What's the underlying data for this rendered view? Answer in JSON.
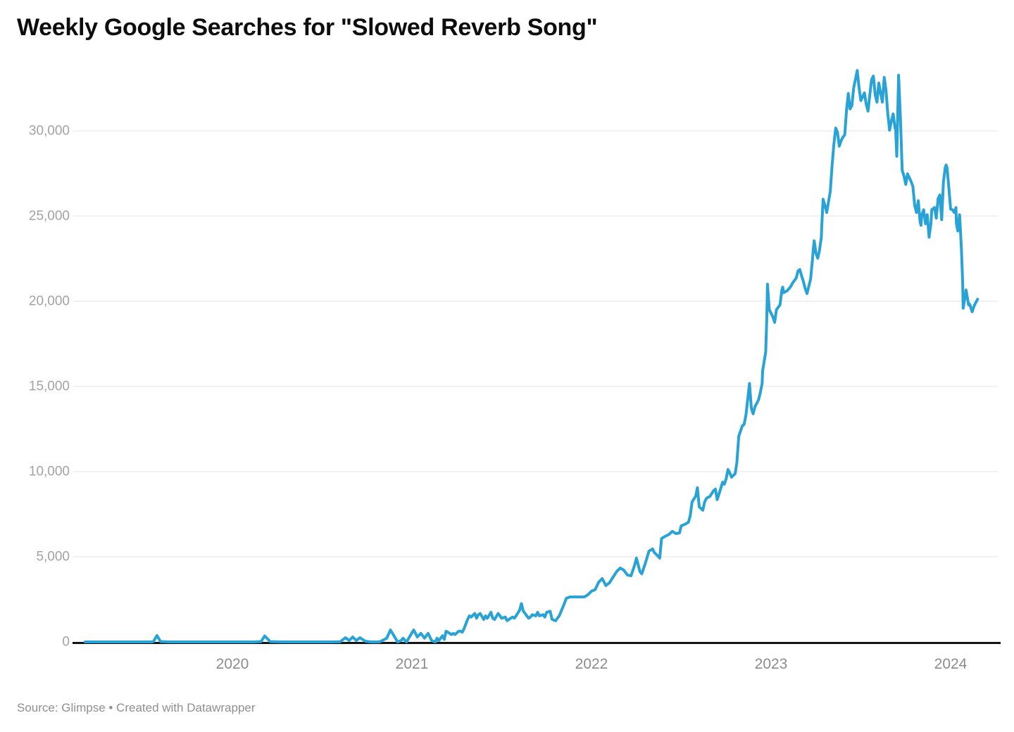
{
  "title": "Weekly Google Searches for \"Slowed Reverb Song\"",
  "source_note": "Source: Glimpse • Created with Datawrapper",
  "colors": {
    "line": "#29a2d5",
    "grid": "#e3e3e3",
    "zero_axis": "#141414",
    "title": "#0d0d0d",
    "y_tick_label": "#a2a2a2",
    "x_tick_label": "#8c8c8c",
    "source": "#8f8f8f",
    "background": "#ffffff"
  },
  "chart_data": {
    "type": "line",
    "title": "Weekly Google Searches for \"Slowed Reverb Song\"",
    "xlabel": "",
    "ylabel": "",
    "x_unit": "decimal_year",
    "y_unit": "weekly searches",
    "x_range": [
      2019.15,
      2024.25
    ],
    "ylim": [
      0,
      34000
    ],
    "grid": "horizontal",
    "legend": "none",
    "x_ticks": [
      {
        "year": 2020,
        "label": "2020"
      },
      {
        "year": 2021,
        "label": "2021"
      },
      {
        "year": 2022,
        "label": "2022"
      },
      {
        "year": 2023,
        "label": "2023"
      },
      {
        "year": 2024,
        "label": "2024"
      }
    ],
    "y_ticks": [
      {
        "value": 0,
        "label": "0"
      },
      {
        "value": 5000,
        "label": "5,000"
      },
      {
        "value": 10000,
        "label": "10,000"
      },
      {
        "value": 15000,
        "label": "15,000"
      },
      {
        "value": 20000,
        "label": "20,000"
      },
      {
        "value": 25000,
        "label": "25,000"
      },
      {
        "value": 30000,
        "label": "30,000"
      }
    ],
    "series": [
      {
        "name": "Weekly Google searches",
        "points": [
          [
            2019.18,
            0
          ],
          [
            2019.27,
            0
          ],
          [
            2019.37,
            0
          ],
          [
            2019.47,
            0
          ],
          [
            2019.55,
            0
          ],
          [
            2019.56,
            20
          ],
          [
            2019.58,
            370
          ],
          [
            2019.6,
            20
          ],
          [
            2019.65,
            0
          ],
          [
            2019.75,
            0
          ],
          [
            2019.85,
            0
          ],
          [
            2019.95,
            0
          ],
          [
            2020.05,
            0
          ],
          [
            2020.12,
            0
          ],
          [
            2020.16,
            20
          ],
          [
            2020.18,
            350
          ],
          [
            2020.21,
            20
          ],
          [
            2020.27,
            0
          ],
          [
            2020.35,
            0
          ],
          [
            2020.45,
            0
          ],
          [
            2020.55,
            0
          ],
          [
            2020.6,
            10
          ],
          [
            2020.63,
            250
          ],
          [
            2020.65,
            80
          ],
          [
            2020.67,
            290
          ],
          [
            2020.69,
            80
          ],
          [
            2020.71,
            250
          ],
          [
            2020.74,
            40
          ],
          [
            2020.77,
            0
          ],
          [
            2020.82,
            0
          ],
          [
            2020.86,
            220
          ],
          [
            2020.88,
            700
          ],
          [
            2020.9,
            360
          ],
          [
            2020.92,
            0
          ],
          [
            2020.94,
            80
          ],
          [
            2020.95,
            220
          ],
          [
            2020.97,
            0
          ],
          [
            2020.99,
            360
          ],
          [
            2021.01,
            700
          ],
          [
            2021.02,
            500
          ],
          [
            2021.03,
            290
          ],
          [
            2021.05,
            500
          ],
          [
            2021.06,
            360
          ],
          [
            2021.07,
            220
          ],
          [
            2021.09,
            500
          ],
          [
            2021.1,
            290
          ],
          [
            2021.11,
            80
          ],
          [
            2021.13,
            0
          ],
          [
            2021.14,
            220
          ],
          [
            2021.15,
            80
          ],
          [
            2021.17,
            360
          ],
          [
            2021.18,
            150
          ],
          [
            2021.19,
            630
          ],
          [
            2021.2,
            570
          ],
          [
            2021.22,
            430
          ],
          [
            2021.23,
            500
          ],
          [
            2021.24,
            430
          ],
          [
            2021.26,
            630
          ],
          [
            2021.27,
            630
          ],
          [
            2021.28,
            570
          ],
          [
            2021.29,
            770
          ],
          [
            2021.31,
            1320
          ],
          [
            2021.32,
            1530
          ],
          [
            2021.33,
            1460
          ],
          [
            2021.35,
            1670
          ],
          [
            2021.36,
            1390
          ],
          [
            2021.37,
            1600
          ],
          [
            2021.38,
            1670
          ],
          [
            2021.4,
            1320
          ],
          [
            2021.41,
            1530
          ],
          [
            2021.42,
            1390
          ],
          [
            2021.44,
            1740
          ],
          [
            2021.45,
            1390
          ],
          [
            2021.46,
            1320
          ],
          [
            2021.48,
            1670
          ],
          [
            2021.49,
            1530
          ],
          [
            2021.5,
            1390
          ],
          [
            2021.52,
            1460
          ],
          [
            2021.53,
            1250
          ],
          [
            2021.54,
            1320
          ],
          [
            2021.56,
            1460
          ],
          [
            2021.57,
            1390
          ],
          [
            2021.58,
            1530
          ],
          [
            2021.6,
            1870
          ],
          [
            2021.61,
            2250
          ],
          [
            2021.62,
            1810
          ],
          [
            2021.64,
            1530
          ],
          [
            2021.65,
            1390
          ],
          [
            2021.66,
            1460
          ],
          [
            2021.67,
            1600
          ],
          [
            2021.69,
            1530
          ],
          [
            2021.7,
            1740
          ],
          [
            2021.71,
            1530
          ],
          [
            2021.73,
            1600
          ],
          [
            2021.74,
            1460
          ],
          [
            2021.75,
            1740
          ],
          [
            2021.77,
            1800
          ],
          [
            2021.78,
            1330
          ],
          [
            2021.8,
            1240
          ],
          [
            2021.82,
            1530
          ],
          [
            2021.84,
            2020
          ],
          [
            2021.86,
            2560
          ],
          [
            2021.88,
            2640
          ],
          [
            2021.92,
            2640
          ],
          [
            2021.96,
            2640
          ],
          [
            2021.98,
            2770
          ],
          [
            2022.0,
            2980
          ],
          [
            2022.02,
            3060
          ],
          [
            2022.04,
            3510
          ],
          [
            2022.06,
            3720
          ],
          [
            2022.08,
            3310
          ],
          [
            2022.1,
            3470
          ],
          [
            2022.12,
            3800
          ],
          [
            2022.14,
            4130
          ],
          [
            2022.16,
            4340
          ],
          [
            2022.18,
            4210
          ],
          [
            2022.2,
            3930
          ],
          [
            2022.22,
            3880
          ],
          [
            2022.24,
            4500
          ],
          [
            2022.25,
            4920
          ],
          [
            2022.27,
            4130
          ],
          [
            2022.28,
            4000
          ],
          [
            2022.3,
            4630
          ],
          [
            2022.32,
            5330
          ],
          [
            2022.34,
            5460
          ],
          [
            2022.35,
            5250
          ],
          [
            2022.37,
            5040
          ],
          [
            2022.38,
            4920
          ],
          [
            2022.39,
            6070
          ],
          [
            2022.41,
            6200
          ],
          [
            2022.43,
            6300
          ],
          [
            2022.45,
            6490
          ],
          [
            2022.47,
            6360
          ],
          [
            2022.49,
            6400
          ],
          [
            2022.5,
            6820
          ],
          [
            2022.52,
            6900
          ],
          [
            2022.54,
            7030
          ],
          [
            2022.55,
            7400
          ],
          [
            2022.56,
            8220
          ],
          [
            2022.58,
            8550
          ],
          [
            2022.59,
            9050
          ],
          [
            2022.6,
            7930
          ],
          [
            2022.62,
            7730
          ],
          [
            2022.63,
            8220
          ],
          [
            2022.64,
            8430
          ],
          [
            2022.66,
            8550
          ],
          [
            2022.68,
            8880
          ],
          [
            2022.69,
            8970
          ],
          [
            2022.7,
            8350
          ],
          [
            2022.71,
            8680
          ],
          [
            2022.73,
            9380
          ],
          [
            2022.74,
            9260
          ],
          [
            2022.75,
            9590
          ],
          [
            2022.76,
            10120
          ],
          [
            2022.77,
            9920
          ],
          [
            2022.78,
            9670
          ],
          [
            2022.8,
            9880
          ],
          [
            2022.81,
            10540
          ],
          [
            2022.82,
            12070
          ],
          [
            2022.84,
            12690
          ],
          [
            2022.85,
            12770
          ],
          [
            2022.86,
            13310
          ],
          [
            2022.88,
            15170
          ],
          [
            2022.89,
            13720
          ],
          [
            2022.9,
            13390
          ],
          [
            2022.91,
            13800
          ],
          [
            2022.92,
            14000
          ],
          [
            2022.93,
            14210
          ],
          [
            2022.94,
            14630
          ],
          [
            2022.95,
            15170
          ],
          [
            2022.953,
            15910
          ],
          [
            2022.97,
            17020
          ],
          [
            2022.976,
            19000
          ],
          [
            2022.98,
            21000
          ],
          [
            2022.99,
            19500
          ],
          [
            2023.01,
            19090
          ],
          [
            2023.02,
            18760
          ],
          [
            2023.03,
            19500
          ],
          [
            2023.05,
            19790
          ],
          [
            2023.06,
            20660
          ],
          [
            2023.065,
            20830
          ],
          [
            2023.07,
            20500
          ],
          [
            2023.09,
            20620
          ],
          [
            2023.1,
            20740
          ],
          [
            2023.11,
            20870
          ],
          [
            2023.12,
            21070
          ],
          [
            2023.14,
            21360
          ],
          [
            2023.15,
            21780
          ],
          [
            2023.16,
            21860
          ],
          [
            2023.17,
            21490
          ],
          [
            2023.18,
            21160
          ],
          [
            2023.19,
            20740
          ],
          [
            2023.2,
            20450
          ],
          [
            2023.22,
            21290
          ],
          [
            2023.23,
            22400
          ],
          [
            2023.235,
            23020
          ],
          [
            2023.24,
            23550
          ],
          [
            2023.25,
            22810
          ],
          [
            2023.26,
            22520
          ],
          [
            2023.27,
            23000
          ],
          [
            2023.28,
            23760
          ],
          [
            2023.282,
            24340
          ],
          [
            2023.29,
            25990
          ],
          [
            2023.3,
            25620
          ],
          [
            2023.31,
            25210
          ],
          [
            2023.33,
            26450
          ],
          [
            2023.34,
            27980
          ],
          [
            2023.35,
            29220
          ],
          [
            2023.36,
            30170
          ],
          [
            2023.37,
            29920
          ],
          [
            2023.38,
            29100
          ],
          [
            2023.39,
            29430
          ],
          [
            2023.4,
            29630
          ],
          [
            2023.41,
            29760
          ],
          [
            2023.42,
            31170
          ],
          [
            2023.43,
            32200
          ],
          [
            2023.44,
            31290
          ],
          [
            2023.45,
            31490
          ],
          [
            2023.46,
            32520
          ],
          [
            2023.48,
            33550
          ],
          [
            2023.49,
            32520
          ],
          [
            2023.5,
            31780
          ],
          [
            2023.52,
            32230
          ],
          [
            2023.53,
            31570
          ],
          [
            2023.54,
            31160
          ],
          [
            2023.55,
            32110
          ],
          [
            2023.56,
            33020
          ],
          [
            2023.57,
            33220
          ],
          [
            2023.58,
            32110
          ],
          [
            2023.59,
            31690
          ],
          [
            2023.6,
            32810
          ],
          [
            2023.61,
            32230
          ],
          [
            2023.62,
            31690
          ],
          [
            2023.63,
            33140
          ],
          [
            2023.64,
            32400
          ],
          [
            2023.65,
            31000
          ],
          [
            2023.66,
            30040
          ],
          [
            2023.67,
            30600
          ],
          [
            2023.68,
            31000
          ],
          [
            2023.69,
            30190
          ],
          [
            2023.694,
            30040
          ],
          [
            2023.7,
            28510
          ],
          [
            2023.71,
            33270
          ],
          [
            2023.72,
            30870
          ],
          [
            2023.73,
            27690
          ],
          [
            2023.74,
            27360
          ],
          [
            2023.75,
            26860
          ],
          [
            2023.76,
            27480
          ],
          [
            2023.78,
            27020
          ],
          [
            2023.79,
            26740
          ],
          [
            2023.8,
            25620
          ],
          [
            2023.81,
            25210
          ],
          [
            2023.82,
            25900
          ],
          [
            2023.83,
            24670
          ],
          [
            2023.835,
            24460
          ],
          [
            2023.84,
            25080
          ],
          [
            2023.85,
            25370
          ],
          [
            2023.86,
            24550
          ],
          [
            2023.87,
            25080
          ],
          [
            2023.88,
            23760
          ],
          [
            2023.89,
            24550
          ],
          [
            2023.895,
            25370
          ],
          [
            2023.91,
            25500
          ],
          [
            2023.92,
            24880
          ],
          [
            2023.93,
            26030
          ],
          [
            2023.94,
            26240
          ],
          [
            2023.95,
            24790
          ],
          [
            2023.96,
            27020
          ],
          [
            2023.97,
            27850
          ],
          [
            2023.975,
            28000
          ],
          [
            2023.98,
            27850
          ],
          [
            2023.99,
            26650
          ],
          [
            2024.0,
            25410
          ],
          [
            2024.01,
            25370
          ],
          [
            2024.02,
            25210
          ],
          [
            2024.03,
            25500
          ],
          [
            2024.032,
            24550
          ],
          [
            2024.04,
            24130
          ],
          [
            2024.05,
            25080
          ],
          [
            2024.052,
            24670
          ],
          [
            2024.06,
            23100
          ],
          [
            2024.067,
            21070
          ],
          [
            2024.07,
            19590
          ],
          [
            2024.08,
            20250
          ],
          [
            2024.086,
            20660
          ],
          [
            2024.1,
            19790
          ],
          [
            2024.106,
            19830
          ],
          [
            2024.12,
            19380
          ],
          [
            2024.13,
            19710
          ],
          [
            2024.14,
            19920
          ],
          [
            2024.15,
            20120
          ]
        ]
      }
    ]
  }
}
